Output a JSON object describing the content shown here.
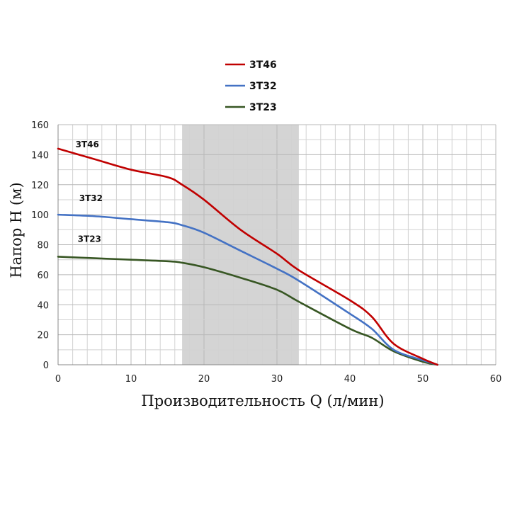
{
  "chart_data": {
    "type": "line",
    "title": "",
    "xlabel": "Производительность Q (л/мин)",
    "ylabel": "Напор H (м)",
    "xlim": [
      0,
      60
    ],
    "ylim": [
      0,
      160
    ],
    "x_ticks": [
      0,
      10,
      20,
      30,
      40,
      50,
      60
    ],
    "y_ticks": [
      0,
      20,
      40,
      60,
      80,
      100,
      120,
      140,
      160
    ],
    "grid": true,
    "legend": "top",
    "shaded_range": [
      17,
      33
    ],
    "series": [
      {
        "name": "3T46",
        "color": "#c00000",
        "x": [
          0,
          5,
          10,
          15,
          17,
          20,
          25,
          30,
          33,
          40,
          43,
          46,
          50,
          52
        ],
        "y": [
          144,
          137,
          130,
          125,
          120,
          110,
          90,
          74,
          63,
          43,
          32,
          14,
          4,
          0
        ]
      },
      {
        "name": "3T32",
        "color": "#4472c4",
        "x": [
          0,
          5,
          10,
          15,
          17,
          20,
          25,
          30,
          33,
          40,
          43,
          46,
          50,
          52
        ],
        "y": [
          100,
          99,
          97,
          95,
          93,
          88,
          76,
          64,
          56,
          34,
          24,
          10,
          3,
          0
        ]
      },
      {
        "name": "3T23",
        "color": "#375623",
        "x": [
          0,
          5,
          10,
          15,
          17,
          20,
          25,
          30,
          33,
          40,
          43,
          46,
          50,
          52
        ],
        "y": [
          72,
          71,
          70,
          69,
          68,
          65,
          58,
          50,
          42,
          24,
          18,
          9,
          2,
          0
        ]
      }
    ],
    "series_labels": [
      {
        "text": "3T46",
        "x": 4,
        "y": 145
      },
      {
        "text": "3T32",
        "x": 4.5,
        "y": 109
      },
      {
        "text": "3T23",
        "x": 4.3,
        "y": 82
      }
    ]
  }
}
